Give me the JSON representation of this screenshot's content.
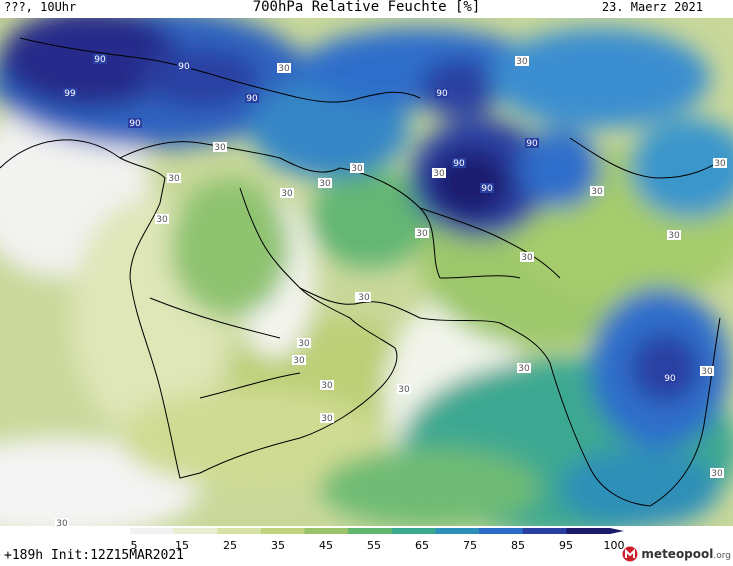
{
  "header": {
    "left": "???, 10Uhr",
    "title": "700hPa Relative Feuchte [%]",
    "date": "23. Maerz 2021"
  },
  "footer": {
    "init": "+189h Init:12Z15MAR2021",
    "brand_name": "meteopool",
    "brand_domain": ".org"
  },
  "legend": {
    "ticks": [
      "5",
      "15",
      "25",
      "35",
      "45",
      "55",
      "65",
      "75",
      "85",
      "95",
      "100"
    ],
    "colors": [
      "#f1f1f1",
      "#e8eecf",
      "#d6e2a6",
      "#c0d47f",
      "#98c36a",
      "#5fb66c",
      "#3aa88a",
      "#2e8fb8",
      "#2c6cc8",
      "#2a3fa2",
      "#1c1a6b"
    ]
  },
  "map": {
    "contour_labels": [
      "90",
      "90",
      "99",
      "90",
      "90",
      "90",
      "90",
      "90",
      "90",
      "90",
      "30",
      "30",
      "30",
      "30",
      "30",
      "30",
      "30",
      "30",
      "30",
      "30",
      "30",
      "30",
      "30",
      "30",
      "30",
      "30",
      "30",
      "30",
      "30",
      "30",
      "30",
      "30",
      "30",
      "30",
      "30"
    ]
  }
}
